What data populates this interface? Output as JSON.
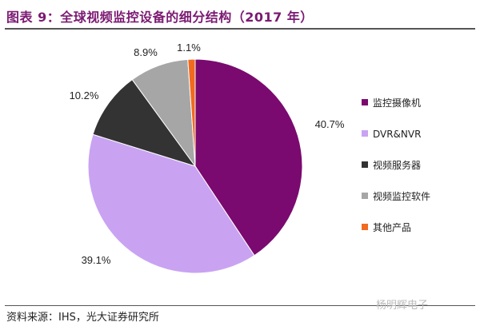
{
  "chart_data": {
    "type": "pie",
    "title": "图表 9：全球视频监控设备的细分结构（2017 年）",
    "categories": [
      "监控摄像机",
      "DVR&NVR",
      "视频服务器",
      "视频监控软件",
      "其他产品"
    ],
    "values": [
      40.7,
      39.1,
      10.2,
      8.9,
      1.1
    ],
    "data_labels": [
      "40.7%",
      "39.1%",
      "10.2%",
      "8.9%",
      "1.1%"
    ],
    "colors": [
      "#7a0a6f",
      "#c9a3f2",
      "#333333",
      "#a6a6a6",
      "#f26a1f"
    ],
    "start": "12 o'clock",
    "direction": "clockwise",
    "legend_position": "right"
  },
  "source": "资料来源：IHS，光大证券研究所",
  "watermark": "杨明辉电子"
}
